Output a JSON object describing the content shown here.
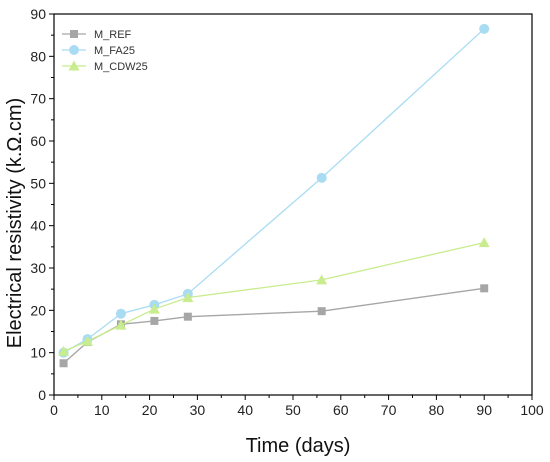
{
  "chart_data": {
    "type": "line",
    "xlabel": "Time (days)",
    "ylabel": "Electrical resistivity (k.Ω.cm)",
    "xlim": [
      0,
      100
    ],
    "ylim": [
      0,
      90
    ],
    "xticks": [
      0,
      10,
      20,
      30,
      40,
      50,
      60,
      70,
      80,
      90,
      100
    ],
    "yticks": [
      0,
      10,
      20,
      30,
      40,
      50,
      60,
      70,
      80,
      90
    ],
    "grid": false,
    "legend_position": "top-left",
    "series": [
      {
        "name": "M_REF",
        "marker": "square",
        "color": "#a6a6a6",
        "x": [
          2,
          7,
          14,
          21,
          28,
          56,
          90
        ],
        "y": [
          7.5,
          12.5,
          16.7,
          17.5,
          18.5,
          19.8,
          25.2
        ]
      },
      {
        "name": "M_FA25",
        "marker": "circle",
        "color": "#a9dcf3",
        "x": [
          2,
          7,
          14,
          21,
          28,
          56,
          90
        ],
        "y": [
          10.0,
          13.2,
          19.2,
          21.3,
          23.9,
          51.3,
          86.5
        ]
      },
      {
        "name": "M_CDW25",
        "marker": "triangle",
        "color": "#c8ec8e",
        "x": [
          2,
          7,
          14,
          21,
          28,
          56,
          90
        ],
        "y": [
          10.3,
          12.7,
          16.5,
          20.3,
          23.0,
          27.2,
          36.0
        ]
      }
    ]
  }
}
